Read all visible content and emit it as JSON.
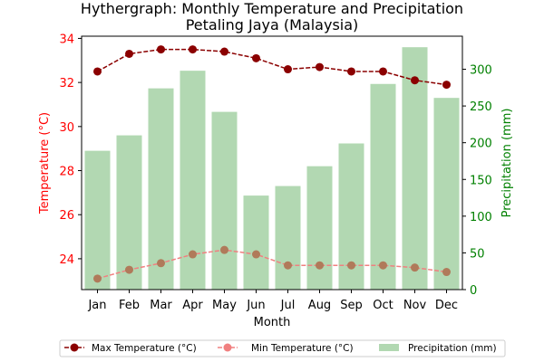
{
  "chart_data": {
    "type": "bar+line",
    "title_line1": "Hythergraph: Monthly Temperature and Precipitation",
    "title_line2": "Petaling Jaya (Malaysia)",
    "xlabel": "Month",
    "ylabel_left": "Temperature (°C)",
    "ylabel_right": "Precipitation (mm)",
    "categories": [
      "Jan",
      "Feb",
      "Mar",
      "Apr",
      "May",
      "Jun",
      "Jul",
      "Aug",
      "Sep",
      "Oct",
      "Nov",
      "Dec"
    ],
    "ylim_left": [
      22.6,
      34.1
    ],
    "ylim_right": [
      0,
      345
    ],
    "yticks_left": [
      24,
      26,
      28,
      30,
      32,
      34
    ],
    "yticks_right": [
      0,
      50,
      100,
      150,
      200,
      250,
      300
    ],
    "grid": false,
    "legend_position": "bottom",
    "series": [
      {
        "name": "Max Temperature (°C)",
        "kind": "line",
        "axis": "left",
        "color": "#8b0000",
        "values": [
          32.5,
          33.3,
          33.5,
          33.5,
          33.4,
          33.1,
          32.6,
          32.7,
          32.5,
          32.5,
          32.1,
          31.9
        ]
      },
      {
        "name": "Min Temperature (°C)",
        "kind": "line",
        "axis": "left",
        "color": "#f08080",
        "values": [
          23.1,
          23.5,
          23.8,
          24.2,
          24.4,
          24.2,
          23.7,
          23.7,
          23.7,
          23.7,
          23.6,
          23.4
        ]
      },
      {
        "name": "Precipitation (mm)",
        "kind": "bar",
        "axis": "right",
        "color": "#b2d8b2",
        "values": [
          189,
          210,
          274,
          298,
          242,
          128,
          141,
          168,
          199,
          280,
          330,
          261
        ]
      }
    ],
    "colors": {
      "left_axis": "#ff0000",
      "right_axis": "#008000",
      "min_marker": "#b07a5a"
    }
  }
}
